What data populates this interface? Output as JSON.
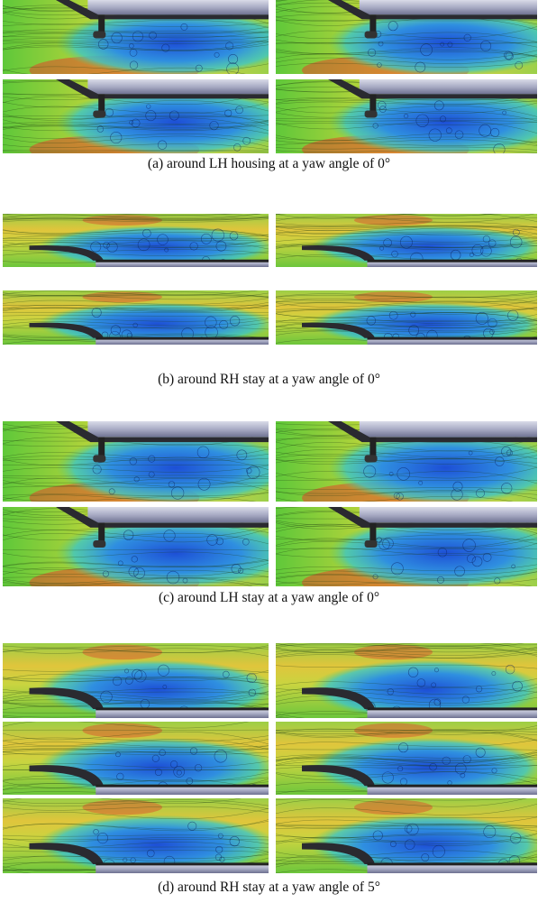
{
  "figure": {
    "captions": [
      "(a) around LH housing at a yaw angle of 0°",
      "(b) around RH stay at a yaw angle of 0°",
      "(c) around LH stay at a yaw angle of 0°",
      "(d) around RH stay at a yaw angle of 5°"
    ]
  }
}
